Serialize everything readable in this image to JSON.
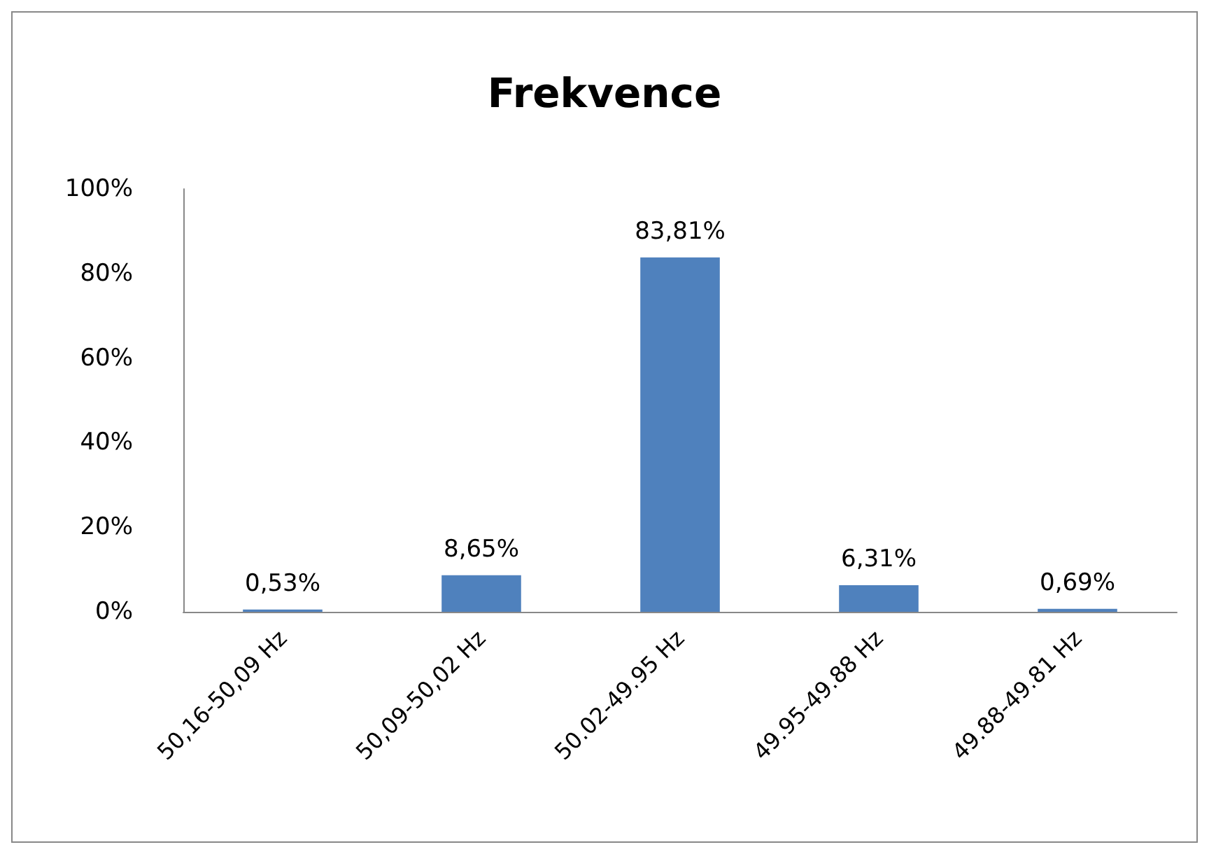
{
  "chart_data": {
    "type": "bar",
    "title": "Frekvence",
    "categories": [
      "50,16-50,09 Hz",
      "50,09-50,02 Hz",
      "50.02-49.95 Hz",
      "49.95-49.88 Hz",
      "49.88-49.81 Hz"
    ],
    "values": [
      0.53,
      8.65,
      83.81,
      6.31,
      0.69
    ],
    "value_labels": [
      "0,53%",
      "8,65%",
      "83,81%",
      "6,31%",
      "0,69%"
    ],
    "color": "#4f81bd",
    "ylim": [
      0,
      100
    ],
    "yticks": [
      {
        "value": 0,
        "label": "0%"
      },
      {
        "value": 20,
        "label": "20%"
      },
      {
        "value": 40,
        "label": "40%"
      },
      {
        "value": 60,
        "label": "60%"
      },
      {
        "value": 80,
        "label": "80%"
      },
      {
        "value": 100,
        "label": "100%"
      }
    ],
    "grid": false
  }
}
